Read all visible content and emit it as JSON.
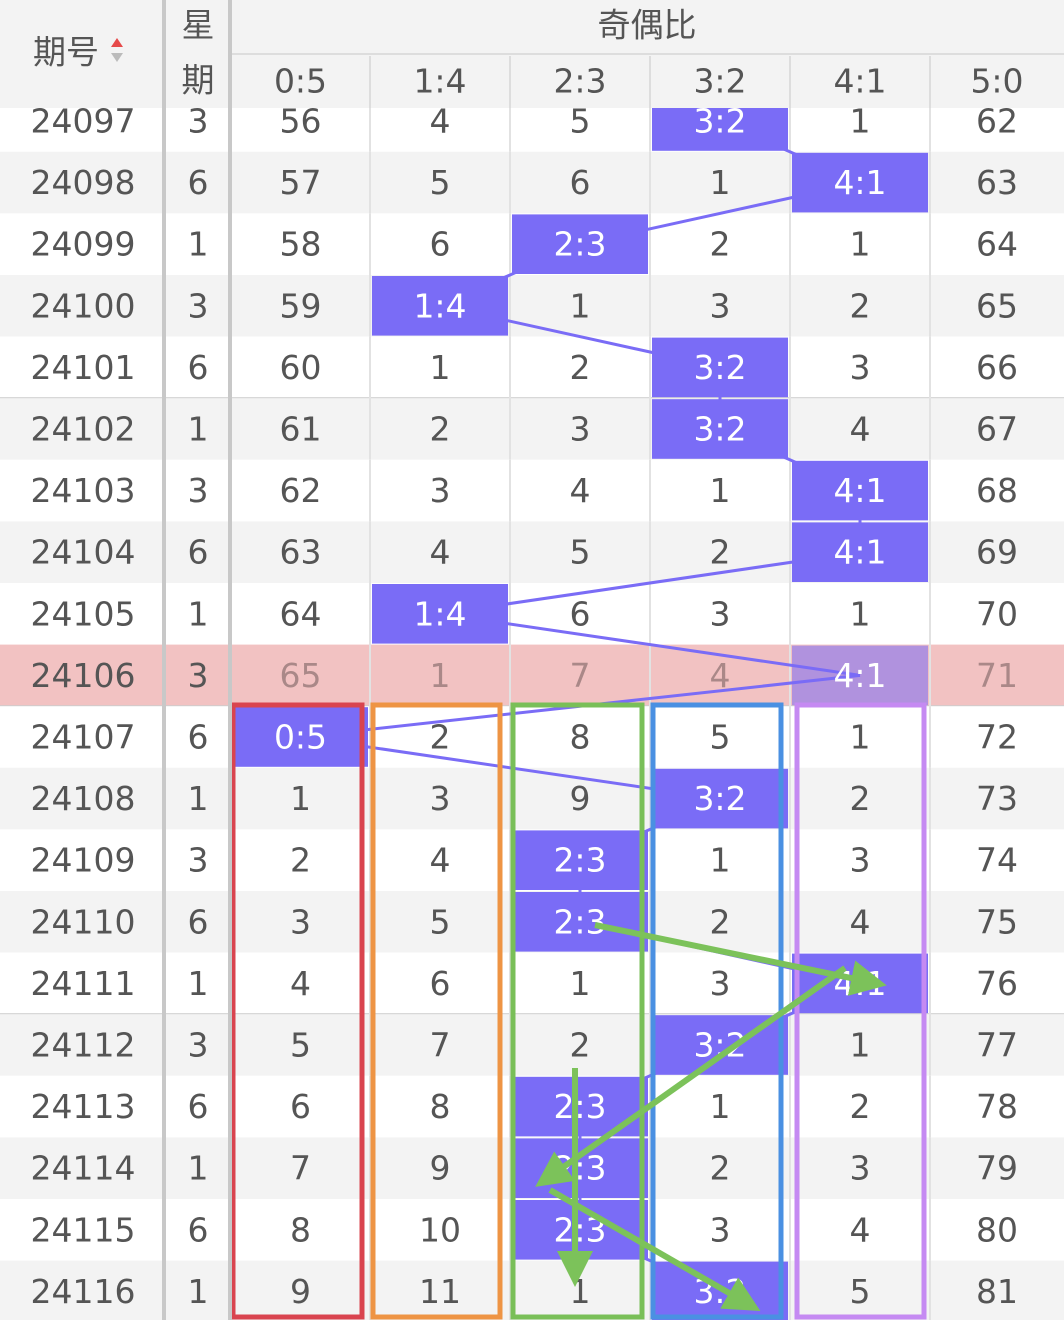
{
  "header": {
    "period": "期号",
    "week_top": "星",
    "week_bottom": "期",
    "group": "奇偶比",
    "columns": [
      "0:5",
      "1:4",
      "2:3",
      "3:2",
      "4:1",
      "5:0"
    ]
  },
  "rows": [
    {
      "period": "24097",
      "week": "3",
      "cells": [
        "56",
        "4",
        "5",
        "3:2",
        "1",
        "62"
      ]
    },
    {
      "period": "24098",
      "week": "6",
      "cells": [
        "57",
        "5",
        "6",
        "1",
        "4:1",
        "63"
      ]
    },
    {
      "period": "24099",
      "week": "1",
      "cells": [
        "58",
        "6",
        "2:3",
        "2",
        "1",
        "64"
      ]
    },
    {
      "period": "24100",
      "week": "3",
      "cells": [
        "59",
        "1:4",
        "1",
        "3",
        "2",
        "65"
      ]
    },
    {
      "period": "24101",
      "week": "6",
      "cells": [
        "60",
        "1",
        "2",
        "3:2",
        "3",
        "66"
      ]
    },
    {
      "period": "24102",
      "week": "1",
      "cells": [
        "61",
        "2",
        "3",
        "3:2",
        "4",
        "67"
      ]
    },
    {
      "period": "24103",
      "week": "3",
      "cells": [
        "62",
        "3",
        "4",
        "1",
        "4:1",
        "68"
      ]
    },
    {
      "period": "24104",
      "week": "6",
      "cells": [
        "63",
        "4",
        "5",
        "2",
        "4:1",
        "69"
      ]
    },
    {
      "period": "24105",
      "week": "1",
      "cells": [
        "64",
        "1:4",
        "6",
        "3",
        "1",
        "70"
      ]
    },
    {
      "period": "24106",
      "week": "3",
      "cells": [
        "65",
        "1",
        "7",
        "4",
        "4:1",
        "71"
      ],
      "highlighted": true
    },
    {
      "period": "24107",
      "week": "6",
      "cells": [
        "0:5",
        "2",
        "8",
        "5",
        "1",
        "72"
      ]
    },
    {
      "period": "24108",
      "week": "1",
      "cells": [
        "1",
        "3",
        "9",
        "3:2",
        "2",
        "73"
      ]
    },
    {
      "period": "24109",
      "week": "3",
      "cells": [
        "2",
        "4",
        "2:3",
        "1",
        "3",
        "74"
      ]
    },
    {
      "period": "24110",
      "week": "6",
      "cells": [
        "3",
        "5",
        "2:3",
        "2",
        "4",
        "75"
      ]
    },
    {
      "period": "24111",
      "week": "1",
      "cells": [
        "4",
        "6",
        "1",
        "3",
        "4:1",
        "76"
      ]
    },
    {
      "period": "24112",
      "week": "3",
      "cells": [
        "5",
        "7",
        "2",
        "3:2",
        "1",
        "77"
      ]
    },
    {
      "period": "24113",
      "week": "6",
      "cells": [
        "6",
        "8",
        "2:3",
        "1",
        "2",
        "78"
      ]
    },
    {
      "period": "24114",
      "week": "1",
      "cells": [
        "7",
        "9",
        "2:3",
        "2",
        "3",
        "79"
      ]
    },
    {
      "period": "24115",
      "week": "6",
      "cells": [
        "8",
        "10",
        "2:3",
        "3",
        "4",
        "80"
      ]
    },
    {
      "period": "24116",
      "week": "1",
      "cells": [
        "9",
        "11",
        "1",
        "3:2",
        "5",
        "81"
      ]
    }
  ]
}
